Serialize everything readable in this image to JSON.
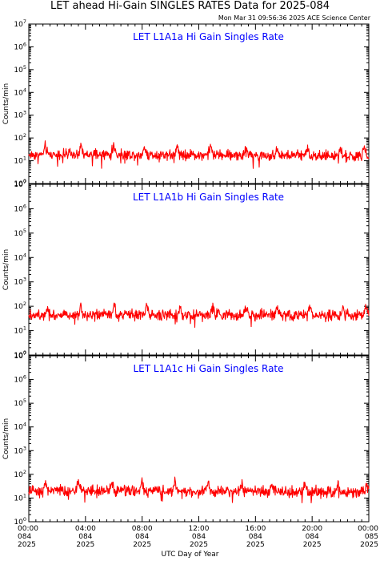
{
  "header": {
    "title": "LET ahead Hi-Gain SINGLES RATES Data for 2025-084",
    "timestamp": "Mon Mar 31 09:56:36 2025 ACE Science Center"
  },
  "colors": {
    "data": "#ff0000",
    "panel_title": "#0000ff",
    "axes": "#000000"
  },
  "chart_data": [
    {
      "type": "line",
      "title": "LET L1A1a Hi Gain Singles Rate",
      "ylabel": "Counts/min",
      "yscale": "log",
      "ylim": [
        1,
        10000000
      ],
      "ytick_labels": [
        "10^0",
        "10^1",
        "10^2",
        "10^3",
        "10^4",
        "10^5",
        "10^6",
        "10^7"
      ],
      "xlim": [
        "084 00:00",
        "085 00:00"
      ],
      "series": [
        {
          "x": [
            "084 00:00",
            "084 02:00",
            "084 04:00",
            "084 06:00",
            "084 08:00",
            "084 10:00",
            "084 12:00",
            "084 14:00",
            "084 16:00",
            "084 18:00",
            "084 20:00",
            "084 22:00",
            "085 00:00"
          ],
          "values": [
            18,
            19,
            18,
            19,
            18,
            19,
            18,
            18,
            17,
            17,
            17,
            16,
            15
          ]
        }
      ],
      "approx_spike_times": [
        "01:10",
        "03:40",
        "06:00",
        "08:10",
        "10:30",
        "12:50",
        "15:20",
        "17:30",
        "19:40",
        "22:00",
        "23:40"
      ]
    },
    {
      "type": "line",
      "title": "LET L1A1b Hi Gain Singles Rate",
      "ylabel": "Counts/min",
      "yscale": "log",
      "ylim": [
        1,
        10000000
      ],
      "ytick_labels": [
        "10^0",
        "10^1",
        "10^2",
        "10^3",
        "10^4",
        "10^5",
        "10^6",
        "10^7"
      ],
      "xlim": [
        "084 00:00",
        "085 00:00"
      ],
      "series": [
        {
          "x": [
            "084 00:00",
            "084 02:00",
            "084 04:00",
            "084 06:00",
            "084 08:00",
            "084 10:00",
            "084 12:00",
            "084 14:00",
            "084 16:00",
            "084 18:00",
            "084 20:00",
            "084 22:00",
            "085 00:00"
          ],
          "values": [
            45,
            45,
            45,
            44,
            45,
            44,
            44,
            44,
            43,
            43,
            43,
            42,
            45
          ]
        }
      ],
      "approx_spike_times": [
        "01:20",
        "03:40",
        "06:00",
        "08:20",
        "10:40",
        "13:00",
        "15:20",
        "17:30",
        "19:50",
        "22:10",
        "23:50"
      ]
    },
    {
      "type": "line",
      "title": "LET L1A1c Hi Gain Singles Rate",
      "ylabel": "Counts/min",
      "yscale": "log",
      "ylim": [
        1,
        10000000
      ],
      "ytick_labels": [
        "10^0",
        "10^1",
        "10^2",
        "10^3",
        "10^4",
        "10^5",
        "10^6",
        "10^7"
      ],
      "xlim": [
        "084 00:00",
        "085 00:00"
      ],
      "series": [
        {
          "x": [
            "084 00:00",
            "084 02:00",
            "084 04:00",
            "084 06:00",
            "084 08:00",
            "084 10:00",
            "084 12:00",
            "084 14:00",
            "084 16:00",
            "084 18:00",
            "084 20:00",
            "084 22:00",
            "085 00:00"
          ],
          "values": [
            20,
            21,
            20,
            20,
            20,
            20,
            19,
            19,
            19,
            18,
            18,
            17,
            18
          ]
        }
      ],
      "approx_spike_times": [
        "01:10",
        "03:30",
        "05:50",
        "08:00",
        "10:20",
        "12:40",
        "15:00",
        "17:10",
        "19:30",
        "21:50",
        "23:50"
      ]
    }
  ],
  "xaxis": {
    "label": "UTC Day of Year",
    "ticks": [
      {
        "time": "00:00",
        "day": "084",
        "year": "2025"
      },
      {
        "time": "04:00",
        "day": "084",
        "year": "2025"
      },
      {
        "time": "08:00",
        "day": "084",
        "year": "2025"
      },
      {
        "time": "12:00",
        "day": "084",
        "year": "2025"
      },
      {
        "time": "16:00",
        "day": "084",
        "year": "2025"
      },
      {
        "time": "20:00",
        "day": "084",
        "year": "2025"
      },
      {
        "time": "00:00",
        "day": "085",
        "year": "2025"
      }
    ]
  }
}
